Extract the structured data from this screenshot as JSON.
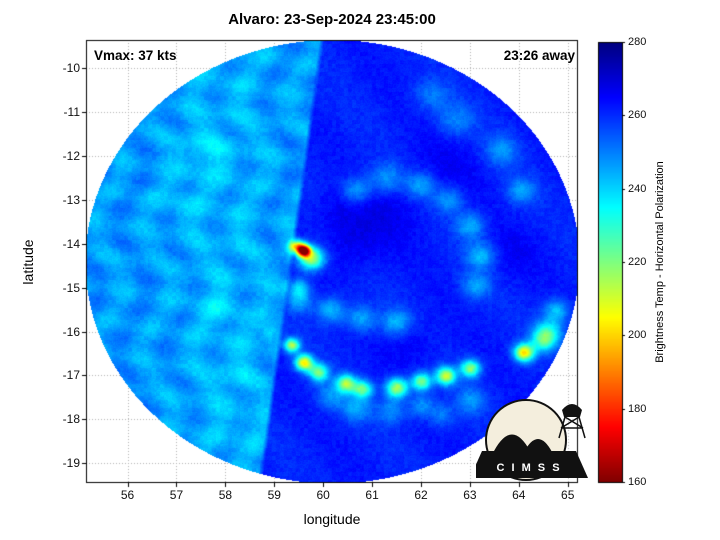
{
  "colors": {
    "background": "#ffffff",
    "grid": "#b0b0b0",
    "plot_border": "#000000",
    "text": "#000000",
    "logo_bg": "#f4eedd",
    "hotspot_core": "#b30000"
  },
  "logo": {
    "letters": "C I M S S"
  },
  "chart_data": {
    "type": "heatmap",
    "title": "Alvaro: 23-Sep-2024 23:45:00",
    "xlabel": "longitude",
    "ylabel": "latitude",
    "annotations": {
      "vmax": "Vmax: 37 kts",
      "time_away": "23:26 away"
    },
    "xlim": [
      55.15,
      65.21
    ],
    "ylim_top_bottom": [
      -9.36,
      -19.45
    ],
    "x_ticks": [
      56,
      57,
      58,
      59,
      60,
      61,
      62,
      63,
      64,
      65
    ],
    "y_ticks": [
      -10,
      -11,
      -12,
      -13,
      -14,
      -15,
      -16,
      -17,
      -18,
      -19
    ],
    "grid": true,
    "colorbar": {
      "label": "Brightness Temp - Horizontal Polarization",
      "min": 160,
      "max": 280,
      "ticks": [
        280,
        260,
        240,
        220,
        200,
        180,
        160
      ],
      "colormap": "jet reversed (high BT = blue, low BT = red)"
    },
    "swath": {
      "center_lon": 60.18,
      "center_lat": -14.4,
      "radius_lon_deg": 5.05,
      "radius_lat_deg": 5.05
    },
    "seam": {
      "lat_ref": -9.5,
      "lon_at_ref": 59.95,
      "dlon_per_dlat": 0.126,
      "left_base_temp_K": 247,
      "right_base_temp_K": 261.5
    },
    "features": [
      {
        "lon": 59.6,
        "lat": -14.15,
        "temp": 166,
        "sigma": 0.13
      },
      {
        "lon": 59.45,
        "lat": -14.05,
        "temp": 205,
        "sigma": 0.15
      },
      {
        "lon": 59.75,
        "lat": -14.32,
        "temp": 213,
        "sigma": 0.26
      },
      {
        "lon": 59.5,
        "lat": -15.0,
        "temp": 241,
        "sigma": 0.22
      },
      {
        "lon": 59.35,
        "lat": -16.3,
        "temp": 214,
        "sigma": 0.16
      },
      {
        "lon": 59.6,
        "lat": -16.7,
        "temp": 204,
        "sigma": 0.18
      },
      {
        "lon": 59.9,
        "lat": -16.92,
        "temp": 222,
        "sigma": 0.2
      },
      {
        "lon": 60.46,
        "lat": -17.17,
        "temp": 217,
        "sigma": 0.2
      },
      {
        "lon": 60.8,
        "lat": -17.3,
        "temp": 224,
        "sigma": 0.2
      },
      {
        "lon": 61.5,
        "lat": -17.27,
        "temp": 214,
        "sigma": 0.22
      },
      {
        "lon": 62.0,
        "lat": -17.13,
        "temp": 220,
        "sigma": 0.2
      },
      {
        "lon": 62.5,
        "lat": -17.0,
        "temp": 211,
        "sigma": 0.2
      },
      {
        "lon": 63.0,
        "lat": -16.83,
        "temp": 218,
        "sigma": 0.2
      },
      {
        "lon": 64.1,
        "lat": -16.47,
        "temp": 202,
        "sigma": 0.2
      },
      {
        "lon": 64.5,
        "lat": -16.2,
        "temp": 232,
        "sigma": 0.25
      },
      {
        "lon": 58.9,
        "lat": -16.0,
        "temp": 236,
        "sigma": 0.2
      },
      {
        "lon": 60.66,
        "lat": -12.78,
        "temp": 245,
        "sigma": 0.3
      },
      {
        "lon": 61.28,
        "lat": -12.5,
        "temp": 247,
        "sigma": 0.35
      },
      {
        "lon": 61.99,
        "lat": -12.66,
        "temp": 245,
        "sigma": 0.3
      },
      {
        "lon": 62.56,
        "lat": -13.0,
        "temp": 247,
        "sigma": 0.3
      },
      {
        "lon": 63.0,
        "lat": -13.58,
        "temp": 245,
        "sigma": 0.3
      },
      {
        "lon": 63.22,
        "lat": -14.26,
        "temp": 243,
        "sigma": 0.3
      },
      {
        "lon": 63.12,
        "lat": -14.94,
        "temp": 246,
        "sigma": 0.3
      },
      {
        "lon": 64.6,
        "lat": -15.97,
        "temp": 238,
        "sigma": 0.3
      },
      {
        "lon": 64.77,
        "lat": -15.5,
        "temp": 242,
        "sigma": 0.25
      },
      {
        "lon": 60.15,
        "lat": -15.5,
        "temp": 243,
        "sigma": 0.3
      },
      {
        "lon": 60.77,
        "lat": -15.7,
        "temp": 245,
        "sigma": 0.3
      },
      {
        "lon": 61.48,
        "lat": -15.78,
        "temp": 244,
        "sigma": 0.3
      },
      {
        "lon": 59.5,
        "lat": -15.3,
        "temp": 246,
        "sigma": 0.25
      },
      {
        "lon": 62.7,
        "lat": -11.18,
        "temp": 250,
        "sigma": 0.4
      },
      {
        "lon": 63.63,
        "lat": -11.87,
        "temp": 248,
        "sigma": 0.35
      },
      {
        "lon": 64.04,
        "lat": -12.78,
        "temp": 247,
        "sigma": 0.3
      },
      {
        "lon": 62.2,
        "lat": -10.6,
        "temp": 251,
        "sigma": 0.35
      },
      {
        "lon": 60.15,
        "lat": -17.45,
        "temp": 248,
        "sigma": 0.3
      },
      {
        "lon": 60.66,
        "lat": -17.74,
        "temp": 246,
        "sigma": 0.3
      },
      {
        "lon": 61.38,
        "lat": -17.79,
        "temp": 249,
        "sigma": 0.3
      },
      {
        "lon": 62.0,
        "lat": -17.68,
        "temp": 247,
        "sigma": 0.25
      },
      {
        "lon": 62.4,
        "lat": -17.9,
        "temp": 250,
        "sigma": 0.25
      },
      {
        "lon": 63.0,
        "lat": -17.56,
        "temp": 248,
        "sigma": 0.3
      },
      {
        "lon": 60.6,
        "lat": -14.0,
        "temp": 267,
        "sigma": 0.6
      },
      {
        "lon": 61.3,
        "lat": -13.3,
        "temp": 266,
        "sigma": 0.7
      },
      {
        "lon": 62.5,
        "lat": -12.2,
        "temp": 265,
        "sigma": 0.8
      },
      {
        "lon": 63.8,
        "lat": -14.2,
        "temp": 265,
        "sigma": 0.6
      },
      {
        "lon": 61.8,
        "lat": -16.3,
        "temp": 266,
        "sigma": 0.5
      },
      {
        "lon": 60.3,
        "lat": -13.2,
        "temp": 266,
        "sigma": 0.5
      },
      {
        "lon": 57.5,
        "lat": -11.9,
        "temp": 241,
        "sigma": 0.5
      },
      {
        "lon": 57.0,
        "lat": -13.0,
        "temp": 243,
        "sigma": 0.5
      },
      {
        "lon": 57.8,
        "lat": -15.5,
        "temp": 242,
        "sigma": 0.4
      },
      {
        "lon": 58.2,
        "lat": -17.0,
        "temp": 243,
        "sigma": 0.4
      },
      {
        "lon": 58.5,
        "lat": -18.2,
        "temp": 244,
        "sigma": 0.35
      }
    ]
  }
}
